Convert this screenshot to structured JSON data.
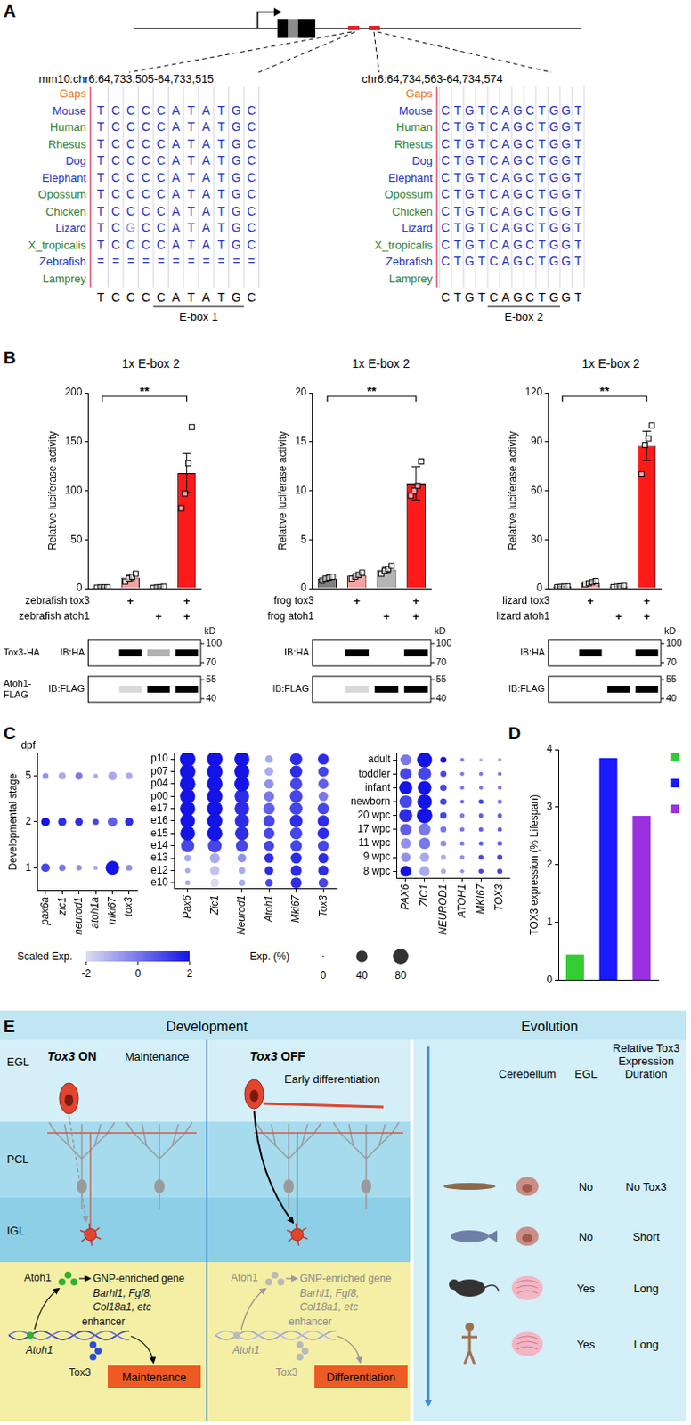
{
  "panel_letters": [
    "A",
    "B",
    "C",
    "D",
    "E"
  ],
  "panel_A": {
    "alignments": [
      {
        "coordinates": "mm10:chr6:64,733,505-64,733,515",
        "gaps_label": "Gaps",
        "consensus": "TCCCCATATGC",
        "motif": "CATATG",
        "motif_label": "E-box 1",
        "rows": [
          {
            "species": "Mouse",
            "color": "#2233bb",
            "sequence": "TCCCCATATGC"
          },
          {
            "species": "Human",
            "color": "#2e7d32",
            "sequence": "TCCCCATATGC"
          },
          {
            "species": "Rhesus",
            "color": "#2e7d32",
            "sequence": "TCCCCATATGC"
          },
          {
            "species": "Dog",
            "color": "#2233bb",
            "sequence": "TCCCCATATGC"
          },
          {
            "species": "Elephant",
            "color": "#2233bb",
            "sequence": "TCCCCATATGC"
          },
          {
            "species": "Opossum",
            "color": "#2e7d32",
            "sequence": "TCCCCATATGC"
          },
          {
            "species": "Chicken",
            "color": "#2e7d32",
            "sequence": "TCCCCATATGC"
          },
          {
            "species": "Lizard",
            "color": "#2233bb",
            "sequence": "TCGCCATATGC"
          },
          {
            "species": "X_tropicalis",
            "color": "#2e7d32",
            "sequence": "TCCCCATATGC"
          },
          {
            "species": "Zebrafish",
            "color": "#2233bb",
            "sequence": "==========="
          },
          {
            "species": "Lamprey",
            "color": "#2e7d32",
            "sequence": null
          }
        ]
      },
      {
        "coordinates": "chr6:64,734,563-64,734,574",
        "gaps_label": "Gaps",
        "consensus": "CTGTCAGCTGGT",
        "motif": "CAGCTG",
        "motif_label": "E-box 2",
        "rows": [
          {
            "species": "Mouse",
            "color": "#2233bb",
            "sequence": "CTGTCAGCTGGT"
          },
          {
            "species": "Human",
            "color": "#2e7d32",
            "sequence": "CTGTCAGCTGGT"
          },
          {
            "species": "Rhesus",
            "color": "#2e7d32",
            "sequence": "CTGTCAGCTGGT"
          },
          {
            "species": "Dog",
            "color": "#2233bb",
            "sequence": "CTGTCAGCTGGT"
          },
          {
            "species": "Elephant",
            "color": "#2233bb",
            "sequence": "CTGTCAGCTGGT"
          },
          {
            "species": "Opossum",
            "color": "#2e7d32",
            "sequence": "CTGTCAGCTGGT"
          },
          {
            "species": "Chicken",
            "color": "#2e7d32",
            "sequence": "CTGTCAGCTGGT"
          },
          {
            "species": "Lizard",
            "color": "#2233bb",
            "sequence": "CTGTCAGCTGGT"
          },
          {
            "species": "X_tropicalis",
            "color": "#2e7d32",
            "sequence": "CTGTCAGCTGGT"
          },
          {
            "species": "Zebrafish",
            "color": "#2233bb",
            "sequence": "CTGTCAGCTGGT"
          },
          {
            "species": "Lamprey",
            "color": "#2e7d32",
            "sequence": null
          }
        ]
      }
    ]
  },
  "chart_data": [
    {
      "type": "bar",
      "title": "1x E-box 2",
      "y_label": "Relative luciferase activity",
      "categories": [
        null,
        null,
        null,
        null
      ],
      "values": [
        1,
        11,
        1.2,
        118
      ],
      "errors": [
        0.3,
        3,
        0.5,
        20
      ],
      "points": [
        [
          0.8,
          1,
          1.1,
          1.1
        ],
        [
          7,
          10,
          12,
          15
        ],
        [
          0.6,
          1,
          1.4,
          1.8
        ],
        [
          82,
          97,
          128,
          165
        ]
      ],
      "colors": [
        "#7f7f7f",
        "#f4a3a3",
        "#b5b5b5",
        "#ff1a1a"
      ],
      "ylim": [
        0,
        200
      ],
      "yticks": [
        0,
        50,
        100,
        150,
        200
      ],
      "grid": false,
      "annotations": [
        {
          "from": 0,
          "to": 3,
          "label": "**"
        }
      ],
      "conditions": [
        {
          "label": "zebrafish tox3",
          "marks": [
            null,
            "+",
            null,
            "+"
          ]
        },
        {
          "label": "zebrafish atoh1",
          "marks": [
            null,
            null,
            "+",
            "+"
          ]
        }
      ],
      "marker_unit": "kD",
      "blots": [
        {
          "label": "Tox3-HA",
          "antibody": "IB:HA",
          "markers": [
            100,
            70
          ],
          "bands": [
            0,
            1,
            0.3,
            1
          ]
        },
        {
          "label": "Atoh1-FLAG",
          "antibody": "IB:FLAG",
          "markers": [
            55,
            40
          ],
          "bands": [
            0,
            0.15,
            1,
            1
          ]
        }
      ]
    },
    {
      "type": "bar",
      "title": "1x E-box 2",
      "y_label": "Relative luciferase activity",
      "categories": [
        null,
        null,
        null,
        null
      ],
      "values": [
        1,
        1.3,
        1.9,
        10.75
      ],
      "errors": [
        0.15,
        0.2,
        0.3,
        1.7
      ],
      "points": [
        [
          0.8,
          1,
          1.1,
          1.2
        ],
        [
          1,
          1.2,
          1.4,
          1.6
        ],
        [
          1.5,
          1.8,
          2,
          2.3
        ],
        [
          9.5,
          10,
          10.5,
          13
        ]
      ],
      "colors": [
        "#7f7f7f",
        "#f4a3a3",
        "#b5b5b5",
        "#ff1a1a"
      ],
      "ylim": [
        0,
        20
      ],
      "yticks": [
        0,
        5,
        10,
        15,
        20
      ],
      "grid": false,
      "annotations": [
        {
          "from": 0,
          "to": 3,
          "label": "**"
        }
      ],
      "conditions": [
        {
          "label": "frog tox3",
          "marks": [
            null,
            "+",
            null,
            "+"
          ]
        },
        {
          "label": "frog atoh1",
          "marks": [
            null,
            null,
            "+",
            "+"
          ]
        }
      ],
      "marker_unit": "kD",
      "blots": [
        {
          "antibody": "IB:HA",
          "markers": [
            100,
            70
          ],
          "bands": [
            0,
            1,
            0,
            1
          ]
        },
        {
          "antibody": "IB:FLAG",
          "markers": [
            55,
            40
          ],
          "bands": [
            0,
            0.15,
            1,
            1
          ]
        }
      ]
    },
    {
      "type": "bar",
      "title": "1x E-box 2",
      "y_label": "Relative luciferase activity",
      "categories": [
        null,
        null,
        null,
        null
      ],
      "values": [
        1,
        3.5,
        1.2,
        87.5
      ],
      "errors": [
        0.3,
        0.8,
        0.4,
        9
      ],
      "points": [
        [
          0.7,
          1,
          1.1,
          1.2
        ],
        [
          2.5,
          3.2,
          3.8,
          4.5
        ],
        [
          0.8,
          1.1,
          1.3,
          1.6
        ],
        [
          70,
          88,
          92,
          100
        ]
      ],
      "colors": [
        "#7f7f7f",
        "#f4a3a3",
        "#b5b5b5",
        "#ff1a1a"
      ],
      "ylim": [
        0,
        120
      ],
      "yticks": [
        0,
        30,
        60,
        90,
        120
      ],
      "grid": false,
      "annotations": [
        {
          "from": 0,
          "to": 3,
          "label": "**"
        }
      ],
      "conditions": [
        {
          "label": "lizard tox3",
          "marks": [
            null,
            "+",
            null,
            "+"
          ]
        },
        {
          "label": "lizard atoh1",
          "marks": [
            null,
            null,
            "+",
            "+"
          ]
        }
      ],
      "marker_unit": "kD",
      "blots": [
        {
          "antibody": "IB:HA",
          "markers": [
            100,
            70
          ],
          "bands": [
            0,
            1,
            0,
            1
          ]
        },
        {
          "antibody": "IB:FLAG",
          "markers": [
            55,
            40
          ],
          "bands": [
            0,
            0,
            1,
            1
          ]
        }
      ]
    },
    {
      "type": "bubble",
      "y_label": "Developmental stage",
      "unit_label": "dpf",
      "x_categories": [
        "pax6a",
        "zic1",
        "neurod1",
        "atoh1a",
        "mki67",
        "tox3"
      ],
      "y_categories": [
        "1",
        "2",
        "5"
      ],
      "color_values": [
        [
          1,
          0,
          -0.5,
          -1,
          2,
          -0.5
        ],
        [
          2,
          1.5,
          1.5,
          1,
          0.5,
          1.5
        ],
        [
          -0.5,
          -1,
          0,
          -1,
          -1,
          -1
        ]
      ],
      "size_values": [
        [
          20,
          10,
          6,
          3,
          60,
          8
        ],
        [
          20,
          18,
          15,
          8,
          25,
          18
        ],
        [
          8,
          12,
          12,
          3,
          20,
          10
        ]
      ]
    },
    {
      "type": "bubble",
      "x_categories": [
        "Pax6",
        "Zic1",
        "Neurod1",
        "Atoh1",
        "Mki67",
        "Tox3"
      ],
      "y_categories": [
        "e10",
        "e12",
        "e13",
        "e14",
        "e15",
        "e16",
        "e17",
        "p00",
        "p04",
        "p07",
        "p10"
      ],
      "color_values": [
        [
          -1,
          -2,
          -1,
          1,
          1.5,
          1
        ],
        [
          -1,
          -1.5,
          -1,
          1.5,
          1.5,
          1.5
        ],
        [
          -1,
          -1,
          -0.5,
          1.5,
          1.5,
          1.5
        ],
        [
          1,
          1,
          1,
          1,
          1,
          1
        ],
        [
          2,
          2,
          1.5,
          1,
          1,
          1.5
        ],
        [
          2,
          2,
          1.5,
          1,
          1.5,
          1.5
        ],
        [
          2,
          2,
          1.5,
          0.5,
          1,
          1
        ],
        [
          2,
          2,
          1.5,
          0,
          1,
          0
        ],
        [
          2,
          2,
          2,
          -0.5,
          1,
          0.5
        ],
        [
          2,
          2,
          2,
          -1,
          1.5,
          1
        ],
        [
          2,
          2,
          2,
          -1,
          1.5,
          1.5
        ]
      ],
      "size_values": [
        [
          5,
          20,
          10,
          15,
          35,
          25
        ],
        [
          5,
          25,
          10,
          20,
          35,
          30
        ],
        [
          10,
          30,
          20,
          25,
          35,
          30
        ],
        [
          55,
          60,
          45,
          30,
          40,
          35
        ],
        [
          70,
          75,
          60,
          35,
          45,
          40
        ],
        [
          70,
          75,
          65,
          40,
          50,
          40
        ],
        [
          75,
          78,
          70,
          40,
          50,
          40
        ],
        [
          75,
          78,
          70,
          30,
          50,
          25
        ],
        [
          80,
          80,
          75,
          25,
          45,
          30
        ],
        [
          80,
          80,
          75,
          20,
          45,
          30
        ],
        [
          80,
          80,
          75,
          15,
          45,
          35
        ]
      ]
    },
    {
      "type": "bubble",
      "x_categories": [
        "PAX6",
        "ZIC1",
        "NEUROD1",
        "ATOH1",
        "MKI67",
        "TOX3"
      ],
      "y_categories": [
        "8 wpc",
        "9 wpc",
        "11 wpc",
        "17 wpc",
        "20 wpc",
        "newborn",
        "infant",
        "toddler",
        "adult"
      ],
      "color_values": [
        [
          2,
          -1,
          -1,
          -0.5,
          1,
          1
        ],
        [
          -0.5,
          -1,
          -1,
          -0.5,
          1,
          1
        ],
        [
          -0.5,
          0,
          -0.5,
          0,
          0.5,
          0.5
        ],
        [
          0.5,
          0,
          0,
          0,
          0.5,
          0.5
        ],
        [
          1.5,
          2,
          1,
          0,
          0.5,
          0.5
        ],
        [
          1,
          2,
          1,
          0.5,
          1,
          0
        ],
        [
          2,
          2,
          1,
          0,
          0,
          0
        ],
        [
          1,
          1,
          1,
          0,
          0,
          0
        ],
        [
          0,
          2,
          2,
          0,
          -1,
          -1
        ]
      ],
      "size_values": [
        [
          35,
          30,
          5,
          2,
          4,
          5
        ],
        [
          25,
          25,
          5,
          3,
          4,
          5
        ],
        [
          30,
          40,
          8,
          3,
          3,
          4
        ],
        [
          40,
          45,
          8,
          3,
          3,
          3
        ],
        [
          55,
          80,
          10,
          3,
          3,
          3
        ],
        [
          50,
          70,
          10,
          2,
          4,
          3
        ],
        [
          55,
          60,
          10,
          2,
          2,
          2
        ],
        [
          40,
          55,
          8,
          2,
          2,
          2
        ],
        [
          35,
          75,
          8,
          2,
          1,
          2
        ]
      ]
    },
    {
      "type": "bar",
      "y_label": "TOX3 expression (% Lifespan)",
      "categories": [
        null,
        null,
        null
      ],
      "values": [
        0.45,
        3.85,
        2.85
      ],
      "colors": [
        "#33cc33",
        "#1a1aff",
        "#9b30e0"
      ],
      "ylim": [
        0,
        4
      ],
      "yticks": [
        0,
        1,
        2,
        3,
        4
      ],
      "grid": false,
      "tick_labels": "y",
      "legend": "right"
    }
  ],
  "panel_C_legend": {
    "color_legend": {
      "title": "Scaled Exp.",
      "range": [
        -2,
        2
      ],
      "ticks": [
        -2,
        0,
        2
      ],
      "colors": [
        "#dcdcf0",
        "#1414e6"
      ]
    },
    "size_legend": {
      "title": "Exp. (%)",
      "range": [
        0,
        80
      ],
      "ticks": [
        0,
        40,
        80
      ]
    }
  },
  "panel_E": {
    "development_title": "Development",
    "evolution_title": "Evolution",
    "layers": [
      "EGL",
      "PCL",
      "IGL"
    ],
    "states": [
      {
        "title": "Tox3 ON",
        "cell_label": "Maintenance",
        "factor": "Atoh1",
        "target": "GNP-enriched gene",
        "target_genes": [
          "Barhl1, Fgf8,",
          "Col18a1, etc"
        ],
        "element": "enhancer",
        "gene": "Atoh1",
        "cofactor": "Tox3",
        "outcome": "Maintenance"
      },
      {
        "title": "Tox3 OFF",
        "cell_label": "Early differentiation",
        "factor": "Atoh1",
        "target": "GNP-enriched gene",
        "target_genes": [
          "Barhl1, Fgf8,",
          "Col18a1, etc"
        ],
        "element": "enhancer",
        "gene": "Atoh1",
        "cofactor": "Tox3",
        "outcome": "Differentiation"
      }
    ],
    "evolution_columns": [
      "Cerebellum",
      "EGL",
      "Relative Tox3 Expression Duration"
    ],
    "evolution_rows": [
      [
        "No",
        "No Tox3"
      ],
      [
        "No",
        "Short"
      ],
      [
        "Yes",
        "Long"
      ],
      [
        "Yes",
        "Long"
      ]
    ]
  }
}
